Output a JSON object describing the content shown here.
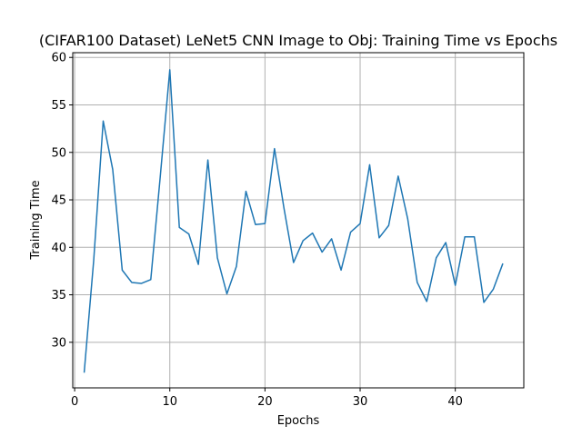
{
  "chart_data": {
    "type": "line",
    "title": "(CIFAR100 Dataset) LeNet5 CNN Image to Obj: Training Time vs Epochs",
    "xlabel": "Epochs",
    "ylabel": "Training Time",
    "xlim": [
      -0.2,
      47.2
    ],
    "ylim": [
      25.2,
      60.5
    ],
    "xticks": [
      0,
      10,
      20,
      30,
      40
    ],
    "yticks": [
      30,
      35,
      40,
      45,
      50,
      55,
      60
    ],
    "grid": true,
    "series": [
      {
        "color": "#1f77b4",
        "x": [
          1,
          2,
          3,
          4,
          5,
          6,
          7,
          8,
          9,
          10,
          11,
          12,
          13,
          14,
          15,
          16,
          17,
          18,
          19,
          20,
          21,
          22,
          23,
          24,
          25,
          26,
          27,
          28,
          29,
          30,
          31,
          32,
          33,
          34,
          35,
          36,
          37,
          38,
          39,
          40,
          41,
          42,
          43,
          44,
          45
        ],
        "y": [
          26.8,
          38.6,
          53.3,
          48.2,
          37.6,
          36.3,
          36.2,
          36.6,
          47.5,
          58.7,
          42.1,
          41.4,
          38.2,
          49.2,
          38.9,
          35.1,
          38.0,
          45.9,
          42.4,
          42.5,
          50.4,
          44.1,
          38.4,
          40.7,
          41.5,
          39.5,
          40.9,
          37.6,
          41.6,
          42.5,
          48.7,
          41.0,
          42.3,
          47.5,
          43.0,
          36.3,
          34.3,
          38.9,
          40.5,
          36.0,
          41.1,
          41.1,
          34.2,
          35.6,
          38.3
        ]
      }
    ]
  }
}
